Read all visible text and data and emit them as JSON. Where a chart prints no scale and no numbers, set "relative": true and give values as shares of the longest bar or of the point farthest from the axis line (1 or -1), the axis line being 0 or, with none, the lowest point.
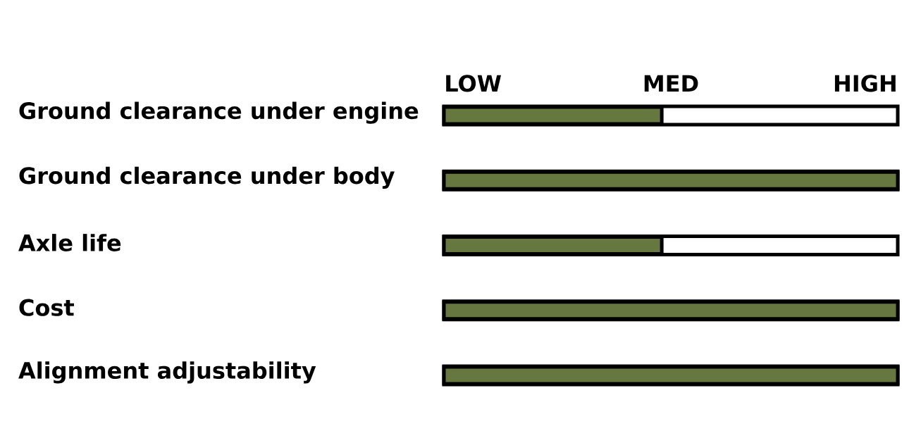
{
  "chart_data": {
    "type": "bar",
    "orientation": "horizontal",
    "relative": true,
    "categories": [
      "Ground clearance under engine",
      "Ground clearance under body",
      "Axle life",
      "Cost",
      "Alignment adjustability"
    ],
    "values": [
      0.48,
      1,
      0.48,
      1,
      1
    ],
    "color": "#66773f",
    "annotations": [
      "LOW",
      "MED",
      "HIGH"
    ]
  }
}
